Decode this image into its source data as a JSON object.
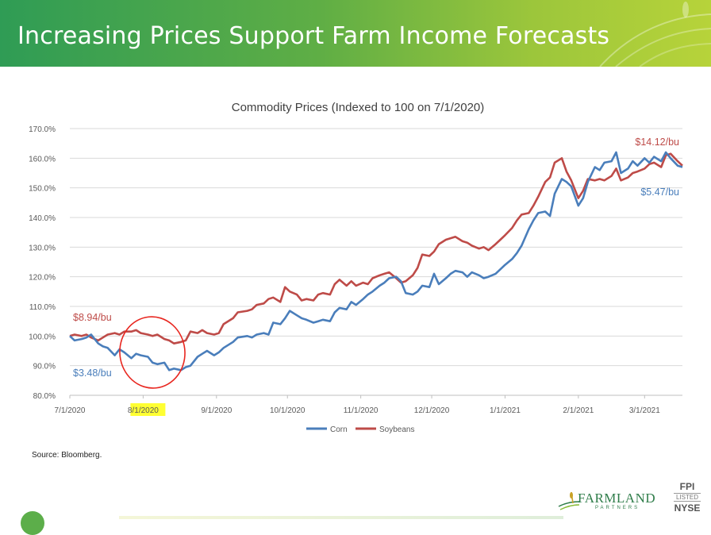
{
  "slide": {
    "title": "Increasing Prices Support Farm Income Forecasts",
    "source": "Source: Bloomberg."
  },
  "logo": {
    "name": "FARMLAND",
    "sub": "PARTNERS",
    "ticker": "FPI",
    "listed": "LISTED",
    "exchange": "NYSE"
  },
  "colors": {
    "corn": "#4a7ebb",
    "soybeans": "#be4b48",
    "annotation_circle": "#e8261f",
    "highlight": "#ffff33",
    "header_start": "#2f9c55",
    "header_end": "#b7d33a"
  },
  "chart_data": {
    "type": "line",
    "title": "Commodity Prices (Indexed to 100 on 7/1/2020)",
    "y_ticks": [
      "80.0%",
      "90.0%",
      "100.0%",
      "110.0%",
      "120.0%",
      "130.0%",
      "140.0%",
      "150.0%",
      "160.0%",
      "170.0%"
    ],
    "ylim": [
      80,
      170
    ],
    "x_ticks": [
      "7/1/2020",
      "8/1/2020",
      "9/1/2020",
      "10/1/2020",
      "11/1/2020",
      "12/1/2020",
      "1/1/2021",
      "2/1/2021",
      "3/1/2021"
    ],
    "x_tick_dates": [
      "2020-07-01",
      "2020-08-01",
      "2020-09-01",
      "2020-10-01",
      "2020-11-01",
      "2020-12-01",
      "2021-01-01",
      "2021-02-01",
      "2021-03-01"
    ],
    "highlighted_tick": "8/1/2020",
    "grid": true,
    "legend_position": "bottom",
    "series": [
      {
        "name": "Corn",
        "points": [
          [
            "2020-07-01",
            100
          ],
          [
            "2020-07-03",
            98.5
          ],
          [
            "2020-07-06",
            99
          ],
          [
            "2020-07-08",
            99.5
          ],
          [
            "2020-07-10",
            100.5
          ],
          [
            "2020-07-13",
            97.5
          ],
          [
            "2020-07-15",
            96.5
          ],
          [
            "2020-07-17",
            96
          ],
          [
            "2020-07-20",
            93.5
          ],
          [
            "2020-07-22",
            95.5
          ],
          [
            "2020-07-24",
            94.5
          ],
          [
            "2020-07-27",
            92.5
          ],
          [
            "2020-07-29",
            94
          ],
          [
            "2020-07-31",
            93.5
          ],
          [
            "2020-08-03",
            93
          ],
          [
            "2020-08-05",
            91
          ],
          [
            "2020-08-07",
            90.5
          ],
          [
            "2020-08-10",
            91
          ],
          [
            "2020-08-12",
            88.5
          ],
          [
            "2020-08-14",
            89
          ],
          [
            "2020-08-17",
            88.5
          ],
          [
            "2020-08-19",
            89.5
          ],
          [
            "2020-08-21",
            90
          ],
          [
            "2020-08-24",
            93
          ],
          [
            "2020-08-26",
            94
          ],
          [
            "2020-08-28",
            95
          ],
          [
            "2020-08-31",
            93.5
          ],
          [
            "2020-09-02",
            94.5
          ],
          [
            "2020-09-04",
            96
          ],
          [
            "2020-09-08",
            98
          ],
          [
            "2020-09-10",
            99.5
          ],
          [
            "2020-09-14",
            100
          ],
          [
            "2020-09-16",
            99.5
          ],
          [
            "2020-09-18",
            100.5
          ],
          [
            "2020-09-21",
            101
          ],
          [
            "2020-09-23",
            100.5
          ],
          [
            "2020-09-25",
            104.5
          ],
          [
            "2020-09-28",
            104
          ],
          [
            "2020-09-30",
            106
          ],
          [
            "2020-10-02",
            108.5
          ],
          [
            "2020-10-05",
            107
          ],
          [
            "2020-10-07",
            106
          ],
          [
            "2020-10-09",
            105.5
          ],
          [
            "2020-10-12",
            104.5
          ],
          [
            "2020-10-14",
            105
          ],
          [
            "2020-10-16",
            105.5
          ],
          [
            "2020-10-19",
            105
          ],
          [
            "2020-10-21",
            108
          ],
          [
            "2020-10-23",
            109.5
          ],
          [
            "2020-10-26",
            109
          ],
          [
            "2020-10-28",
            111.5
          ],
          [
            "2020-10-30",
            110.5
          ],
          [
            "2020-11-02",
            112.5
          ],
          [
            "2020-11-04",
            114
          ],
          [
            "2020-11-06",
            115
          ],
          [
            "2020-11-09",
            117
          ],
          [
            "2020-11-11",
            118
          ],
          [
            "2020-11-13",
            119.5
          ],
          [
            "2020-11-16",
            120
          ],
          [
            "2020-11-18",
            118.5
          ],
          [
            "2020-11-20",
            114.5
          ],
          [
            "2020-11-23",
            114
          ],
          [
            "2020-11-25",
            115
          ],
          [
            "2020-11-27",
            117
          ],
          [
            "2020-11-30",
            116.5
          ],
          [
            "2020-12-02",
            121
          ],
          [
            "2020-12-04",
            117.5
          ],
          [
            "2020-12-07",
            119.5
          ],
          [
            "2020-12-09",
            121
          ],
          [
            "2020-12-11",
            122
          ],
          [
            "2020-12-14",
            121.5
          ],
          [
            "2020-12-16",
            120
          ],
          [
            "2020-12-18",
            121.5
          ],
          [
            "2020-12-21",
            120.5
          ],
          [
            "2020-12-23",
            119.5
          ],
          [
            "2020-12-25",
            120
          ],
          [
            "2020-12-28",
            121
          ],
          [
            "2020-12-30",
            122.5
          ],
          [
            "2021-01-01",
            124
          ],
          [
            "2021-01-04",
            126
          ],
          [
            "2021-01-06",
            128
          ],
          [
            "2021-01-08",
            130.5
          ],
          [
            "2021-01-11",
            136
          ],
          [
            "2021-01-13",
            139
          ],
          [
            "2021-01-15",
            141.5
          ],
          [
            "2021-01-18",
            142
          ],
          [
            "2021-01-20",
            140.5
          ],
          [
            "2021-01-22",
            148
          ],
          [
            "2021-01-25",
            153
          ],
          [
            "2021-01-27",
            152
          ],
          [
            "2021-01-29",
            150.5
          ],
          [
            "2021-02-01",
            144
          ],
          [
            "2021-02-03",
            146.5
          ],
          [
            "2021-02-05",
            152
          ],
          [
            "2021-02-08",
            157
          ],
          [
            "2021-02-10",
            156
          ],
          [
            "2021-02-12",
            158.5
          ],
          [
            "2021-02-15",
            159
          ],
          [
            "2021-02-17",
            162
          ],
          [
            "2021-02-19",
            155
          ],
          [
            "2021-02-22",
            156.5
          ],
          [
            "2021-02-24",
            159
          ],
          [
            "2021-02-26",
            157.5
          ],
          [
            "2021-03-01",
            160
          ],
          [
            "2021-03-03",
            158.5
          ],
          [
            "2021-03-05",
            160.5
          ],
          [
            "2021-03-08",
            159
          ],
          [
            "2021-03-10",
            162
          ],
          [
            "2021-03-12",
            160
          ],
          [
            "2021-03-15",
            157.5
          ],
          [
            "2021-03-17",
            157
          ]
        ]
      },
      {
        "name": "Soybeans",
        "points": [
          [
            "2020-07-01",
            100
          ],
          [
            "2020-07-03",
            100.5
          ],
          [
            "2020-07-06",
            100
          ],
          [
            "2020-07-08",
            100.5
          ],
          [
            "2020-07-10",
            99.5
          ],
          [
            "2020-07-13",
            98.5
          ],
          [
            "2020-07-15",
            99.5
          ],
          [
            "2020-07-17",
            100.5
          ],
          [
            "2020-07-20",
            101
          ],
          [
            "2020-07-22",
            100.5
          ],
          [
            "2020-07-24",
            101.5
          ],
          [
            "2020-07-27",
            101.5
          ],
          [
            "2020-07-29",
            102
          ],
          [
            "2020-07-31",
            101
          ],
          [
            "2020-08-03",
            100.5
          ],
          [
            "2020-08-05",
            100
          ],
          [
            "2020-08-07",
            100.5
          ],
          [
            "2020-08-10",
            99
          ],
          [
            "2020-08-12",
            98.5
          ],
          [
            "2020-08-14",
            97.5
          ],
          [
            "2020-08-17",
            98
          ],
          [
            "2020-08-19",
            98.5
          ],
          [
            "2020-08-21",
            101.5
          ],
          [
            "2020-08-24",
            101
          ],
          [
            "2020-08-26",
            102
          ],
          [
            "2020-08-28",
            101
          ],
          [
            "2020-08-31",
            100.5
          ],
          [
            "2020-09-02",
            101
          ],
          [
            "2020-09-04",
            104
          ],
          [
            "2020-09-08",
            106
          ],
          [
            "2020-09-10",
            108
          ],
          [
            "2020-09-14",
            108.5
          ],
          [
            "2020-09-16",
            109
          ],
          [
            "2020-09-18",
            110.5
          ],
          [
            "2020-09-21",
            111
          ],
          [
            "2020-09-23",
            112.5
          ],
          [
            "2020-09-25",
            113
          ],
          [
            "2020-09-28",
            111.5
          ],
          [
            "2020-09-30",
            116.5
          ],
          [
            "2020-10-02",
            115
          ],
          [
            "2020-10-05",
            114
          ],
          [
            "2020-10-07",
            112
          ],
          [
            "2020-10-09",
            112.5
          ],
          [
            "2020-10-12",
            112
          ],
          [
            "2020-10-14",
            114
          ],
          [
            "2020-10-16",
            114.5
          ],
          [
            "2020-10-19",
            114
          ],
          [
            "2020-10-21",
            117.5
          ],
          [
            "2020-10-23",
            119
          ],
          [
            "2020-10-26",
            117
          ],
          [
            "2020-10-28",
            118.5
          ],
          [
            "2020-10-30",
            117
          ],
          [
            "2020-11-02",
            118
          ],
          [
            "2020-11-04",
            117.5
          ],
          [
            "2020-11-06",
            119.5
          ],
          [
            "2020-11-09",
            120.5
          ],
          [
            "2020-11-11",
            121
          ],
          [
            "2020-11-13",
            121.5
          ],
          [
            "2020-11-16",
            119.5
          ],
          [
            "2020-11-18",
            118
          ],
          [
            "2020-11-20",
            118.5
          ],
          [
            "2020-11-23",
            120.5
          ],
          [
            "2020-11-25",
            123
          ],
          [
            "2020-11-27",
            127.5
          ],
          [
            "2020-11-30",
            127
          ],
          [
            "2020-12-02",
            128.5
          ],
          [
            "2020-12-04",
            131
          ],
          [
            "2020-12-07",
            132.5
          ],
          [
            "2020-12-09",
            133
          ],
          [
            "2020-12-11",
            133.5
          ],
          [
            "2020-12-14",
            132
          ],
          [
            "2020-12-16",
            131.5
          ],
          [
            "2020-12-18",
            130.5
          ],
          [
            "2020-12-21",
            129.5
          ],
          [
            "2020-12-23",
            130
          ],
          [
            "2020-12-25",
            129
          ],
          [
            "2020-12-28",
            131
          ],
          [
            "2020-12-30",
            132.5
          ],
          [
            "2021-01-01",
            134
          ],
          [
            "2021-01-04",
            136.5
          ],
          [
            "2021-01-06",
            139
          ],
          [
            "2021-01-08",
            141
          ],
          [
            "2021-01-11",
            141.5
          ],
          [
            "2021-01-13",
            144
          ],
          [
            "2021-01-15",
            147
          ],
          [
            "2021-01-18",
            152
          ],
          [
            "2021-01-20",
            153.5
          ],
          [
            "2021-01-22",
            158.5
          ],
          [
            "2021-01-25",
            160
          ],
          [
            "2021-01-27",
            155.5
          ],
          [
            "2021-01-29",
            152.5
          ],
          [
            "2021-02-01",
            146.5
          ],
          [
            "2021-02-03",
            149
          ],
          [
            "2021-02-05",
            153
          ],
          [
            "2021-02-08",
            152.5
          ],
          [
            "2021-02-10",
            153
          ],
          [
            "2021-02-12",
            152.5
          ],
          [
            "2021-02-15",
            154
          ],
          [
            "2021-02-17",
            156.5
          ],
          [
            "2021-02-19",
            152.5
          ],
          [
            "2021-02-22",
            153.5
          ],
          [
            "2021-02-24",
            155
          ],
          [
            "2021-02-26",
            155.5
          ],
          [
            "2021-03-01",
            156.5
          ],
          [
            "2021-03-03",
            158
          ],
          [
            "2021-03-05",
            158.5
          ],
          [
            "2021-03-08",
            157
          ],
          [
            "2021-03-10",
            161
          ],
          [
            "2021-03-12",
            161.5
          ],
          [
            "2021-03-15",
            159
          ],
          [
            "2021-03-17",
            157.5
          ]
        ]
      }
    ],
    "annotations": [
      {
        "text": "$14.12/bu",
        "series": "Soybeans",
        "position": "end-above"
      },
      {
        "text": "$5.47/bu",
        "series": "Corn",
        "position": "end-below"
      },
      {
        "text": "$8.94/bu",
        "series": "Soybeans",
        "position": "start-above"
      },
      {
        "text": "$3.48/bu",
        "series": "Corn",
        "position": "start-below"
      }
    ]
  }
}
